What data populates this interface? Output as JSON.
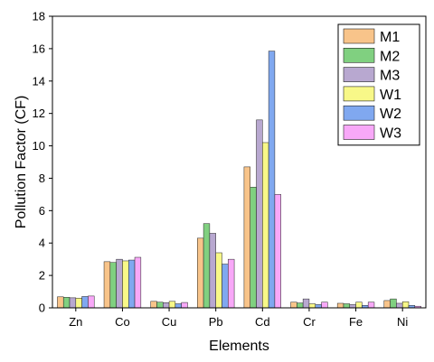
{
  "chart_data": {
    "type": "bar",
    "title": "",
    "xlabel": "Elements",
    "ylabel": "Pollution Factor (CF)",
    "ylim": [
      0,
      18
    ],
    "yticks": [
      "0",
      "2",
      "4",
      "6",
      "8",
      "10",
      "12",
      "14",
      "16",
      "18"
    ],
    "grid": false,
    "legend_position": "top-right",
    "categories": [
      "Zn",
      "Co",
      "Cu",
      "Pb",
      "Cd",
      "Cr",
      "Fe",
      "Ni"
    ],
    "series": [
      {
        "name": "M1",
        "color": "#f8c48a",
        "values": [
          0.68,
          2.85,
          0.4,
          4.3,
          8.7,
          0.35,
          0.28,
          0.45
        ]
      },
      {
        "name": "M2",
        "color": "#80d080",
        "values": [
          0.65,
          2.8,
          0.35,
          5.2,
          7.45,
          0.3,
          0.25,
          0.55
        ]
      },
      {
        "name": "M3",
        "color": "#b8a8d0",
        "values": [
          0.62,
          3.0,
          0.32,
          4.6,
          11.6,
          0.55,
          0.2,
          0.28
        ]
      },
      {
        "name": "W1",
        "color": "#f8f888",
        "values": [
          0.6,
          2.9,
          0.4,
          3.4,
          10.2,
          0.25,
          0.35,
          0.38
        ]
      },
      {
        "name": "W2",
        "color": "#80a8f0",
        "values": [
          0.7,
          2.95,
          0.25,
          2.7,
          15.85,
          0.2,
          0.15,
          0.15
        ]
      },
      {
        "name": "W3",
        "color": "#f8a8f8",
        "values": [
          0.73,
          3.12,
          0.33,
          3.0,
          7.0,
          0.35,
          0.35,
          0.1
        ]
      }
    ]
  }
}
